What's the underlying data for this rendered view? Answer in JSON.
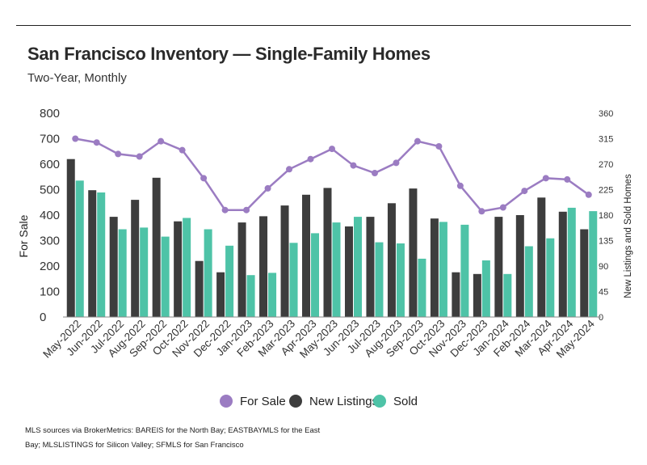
{
  "title": "San Francisco Inventory — Single-Family Homes",
  "subtitle": "Two-Year, Monthly",
  "footer": {
    "line1": "MLS sources via BrokerMetrics: BAREIS for the North Bay; EASTBAYMLS for the East",
    "line2": "Bay; MLSLISTINGS for Silicon Valley; SFMLS for San Francisco"
  },
  "colors": {
    "for_sale": "#9b7cc2",
    "new_listings": "#3d3d3d",
    "sold": "#4ec3a7",
    "tick_text": "#333333"
  },
  "chart_data": {
    "type": "bar",
    "categories": [
      "May-2022",
      "Jun-2022",
      "Jul-2022",
      "Aug-2022",
      "Sep-2022",
      "Oct-2022",
      "Nov-2022",
      "Dec-2022",
      "Jan-2023",
      "Feb-2023",
      "Mar-2023",
      "Apr-2023",
      "May-2023",
      "Jun-2023",
      "Jul-2023",
      "Aug-2023",
      "Sep-2023",
      "Oct-2023",
      "Nov-2023",
      "Dec-2023",
      "Jan-2024",
      "Feb-2024",
      "Mar-2024",
      "Apr-2024",
      "May-2024"
    ],
    "left_axis": {
      "label": "For Sale",
      "min": 0,
      "max": 800,
      "ticks": [
        0,
        100,
        200,
        300,
        400,
        500,
        600,
        700,
        800
      ]
    },
    "right_axis": {
      "label": "New Listings and Sold Homes",
      "min": 0,
      "max": 360,
      "ticks": [
        0,
        45,
        90,
        135,
        180,
        225,
        270,
        315,
        360
      ]
    },
    "series": [
      {
        "name": "For Sale",
        "type": "line",
        "axis": "left",
        "values": [
          700,
          685,
          640,
          630,
          690,
          655,
          545,
          420,
          420,
          505,
          580,
          620,
          660,
          595,
          565,
          605,
          690,
          670,
          515,
          415,
          430,
          495,
          545,
          540,
          480
        ]
      },
      {
        "name": "New Listings",
        "type": "bar",
        "axis": "right",
        "values": [
          279,
          224,
          177,
          207,
          246,
          169,
          99,
          79,
          167,
          178,
          197,
          216,
          228,
          160,
          177,
          201,
          227,
          174,
          79,
          76,
          177,
          180,
          211,
          186,
          155
        ]
      },
      {
        "name": "Sold",
        "type": "bar",
        "axis": "right",
        "values": [
          241,
          220,
          155,
          158,
          142,
          175,
          155,
          126,
          74,
          78,
          131,
          148,
          167,
          177,
          132,
          130,
          103,
          168,
          163,
          100,
          76,
          125,
          139,
          193,
          187
        ]
      }
    ],
    "legend": {
      "position": "bottom",
      "items": [
        "For Sale",
        "New Listings",
        "Sold"
      ]
    },
    "grid": false
  }
}
